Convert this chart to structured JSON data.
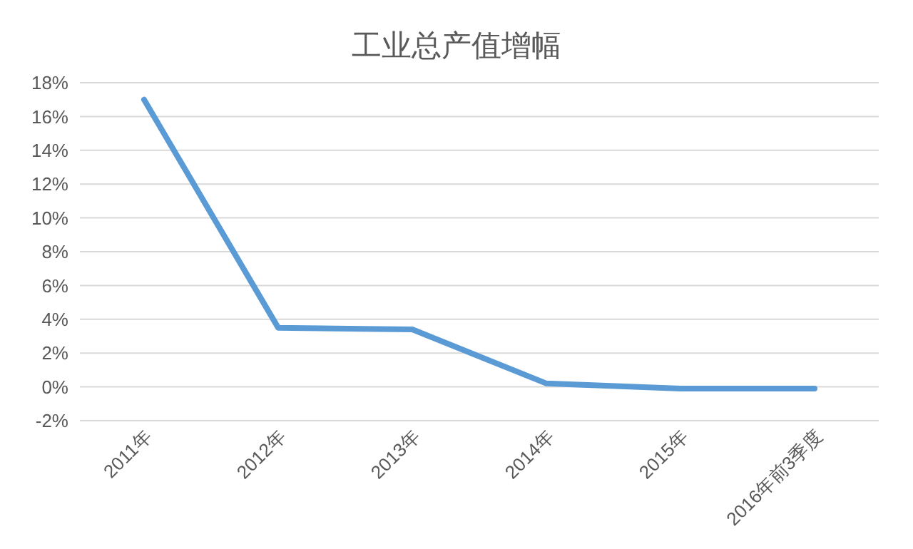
{
  "chart_data": {
    "type": "line",
    "title": "工业总产值增幅",
    "categories": [
      "2011年",
      "2012年",
      "2013年",
      "2014年",
      "2015年",
      "2016年前3季度"
    ],
    "series": [
      {
        "color": "#5b9bd5",
        "values": [
          17.0,
          3.5,
          3.4,
          0.2,
          -0.1,
          -0.1
        ]
      }
    ],
    "ylim": [
      -2,
      18
    ],
    "yticks": [
      {
        "value": -2,
        "label": "-2%"
      },
      {
        "value": 0,
        "label": "0%"
      },
      {
        "value": 2,
        "label": "2%"
      },
      {
        "value": 4,
        "label": "4%"
      },
      {
        "value": 6,
        "label": "6%"
      },
      {
        "value": 8,
        "label": "8%"
      },
      {
        "value": 10,
        "label": "10%"
      },
      {
        "value": 12,
        "label": "12%"
      },
      {
        "value": 14,
        "label": "14%"
      },
      {
        "value": 16,
        "label": "16%"
      },
      {
        "value": 18,
        "label": "18%"
      }
    ],
    "grid": "y",
    "legend": false,
    "marker": "none",
    "line_style": "solid"
  }
}
